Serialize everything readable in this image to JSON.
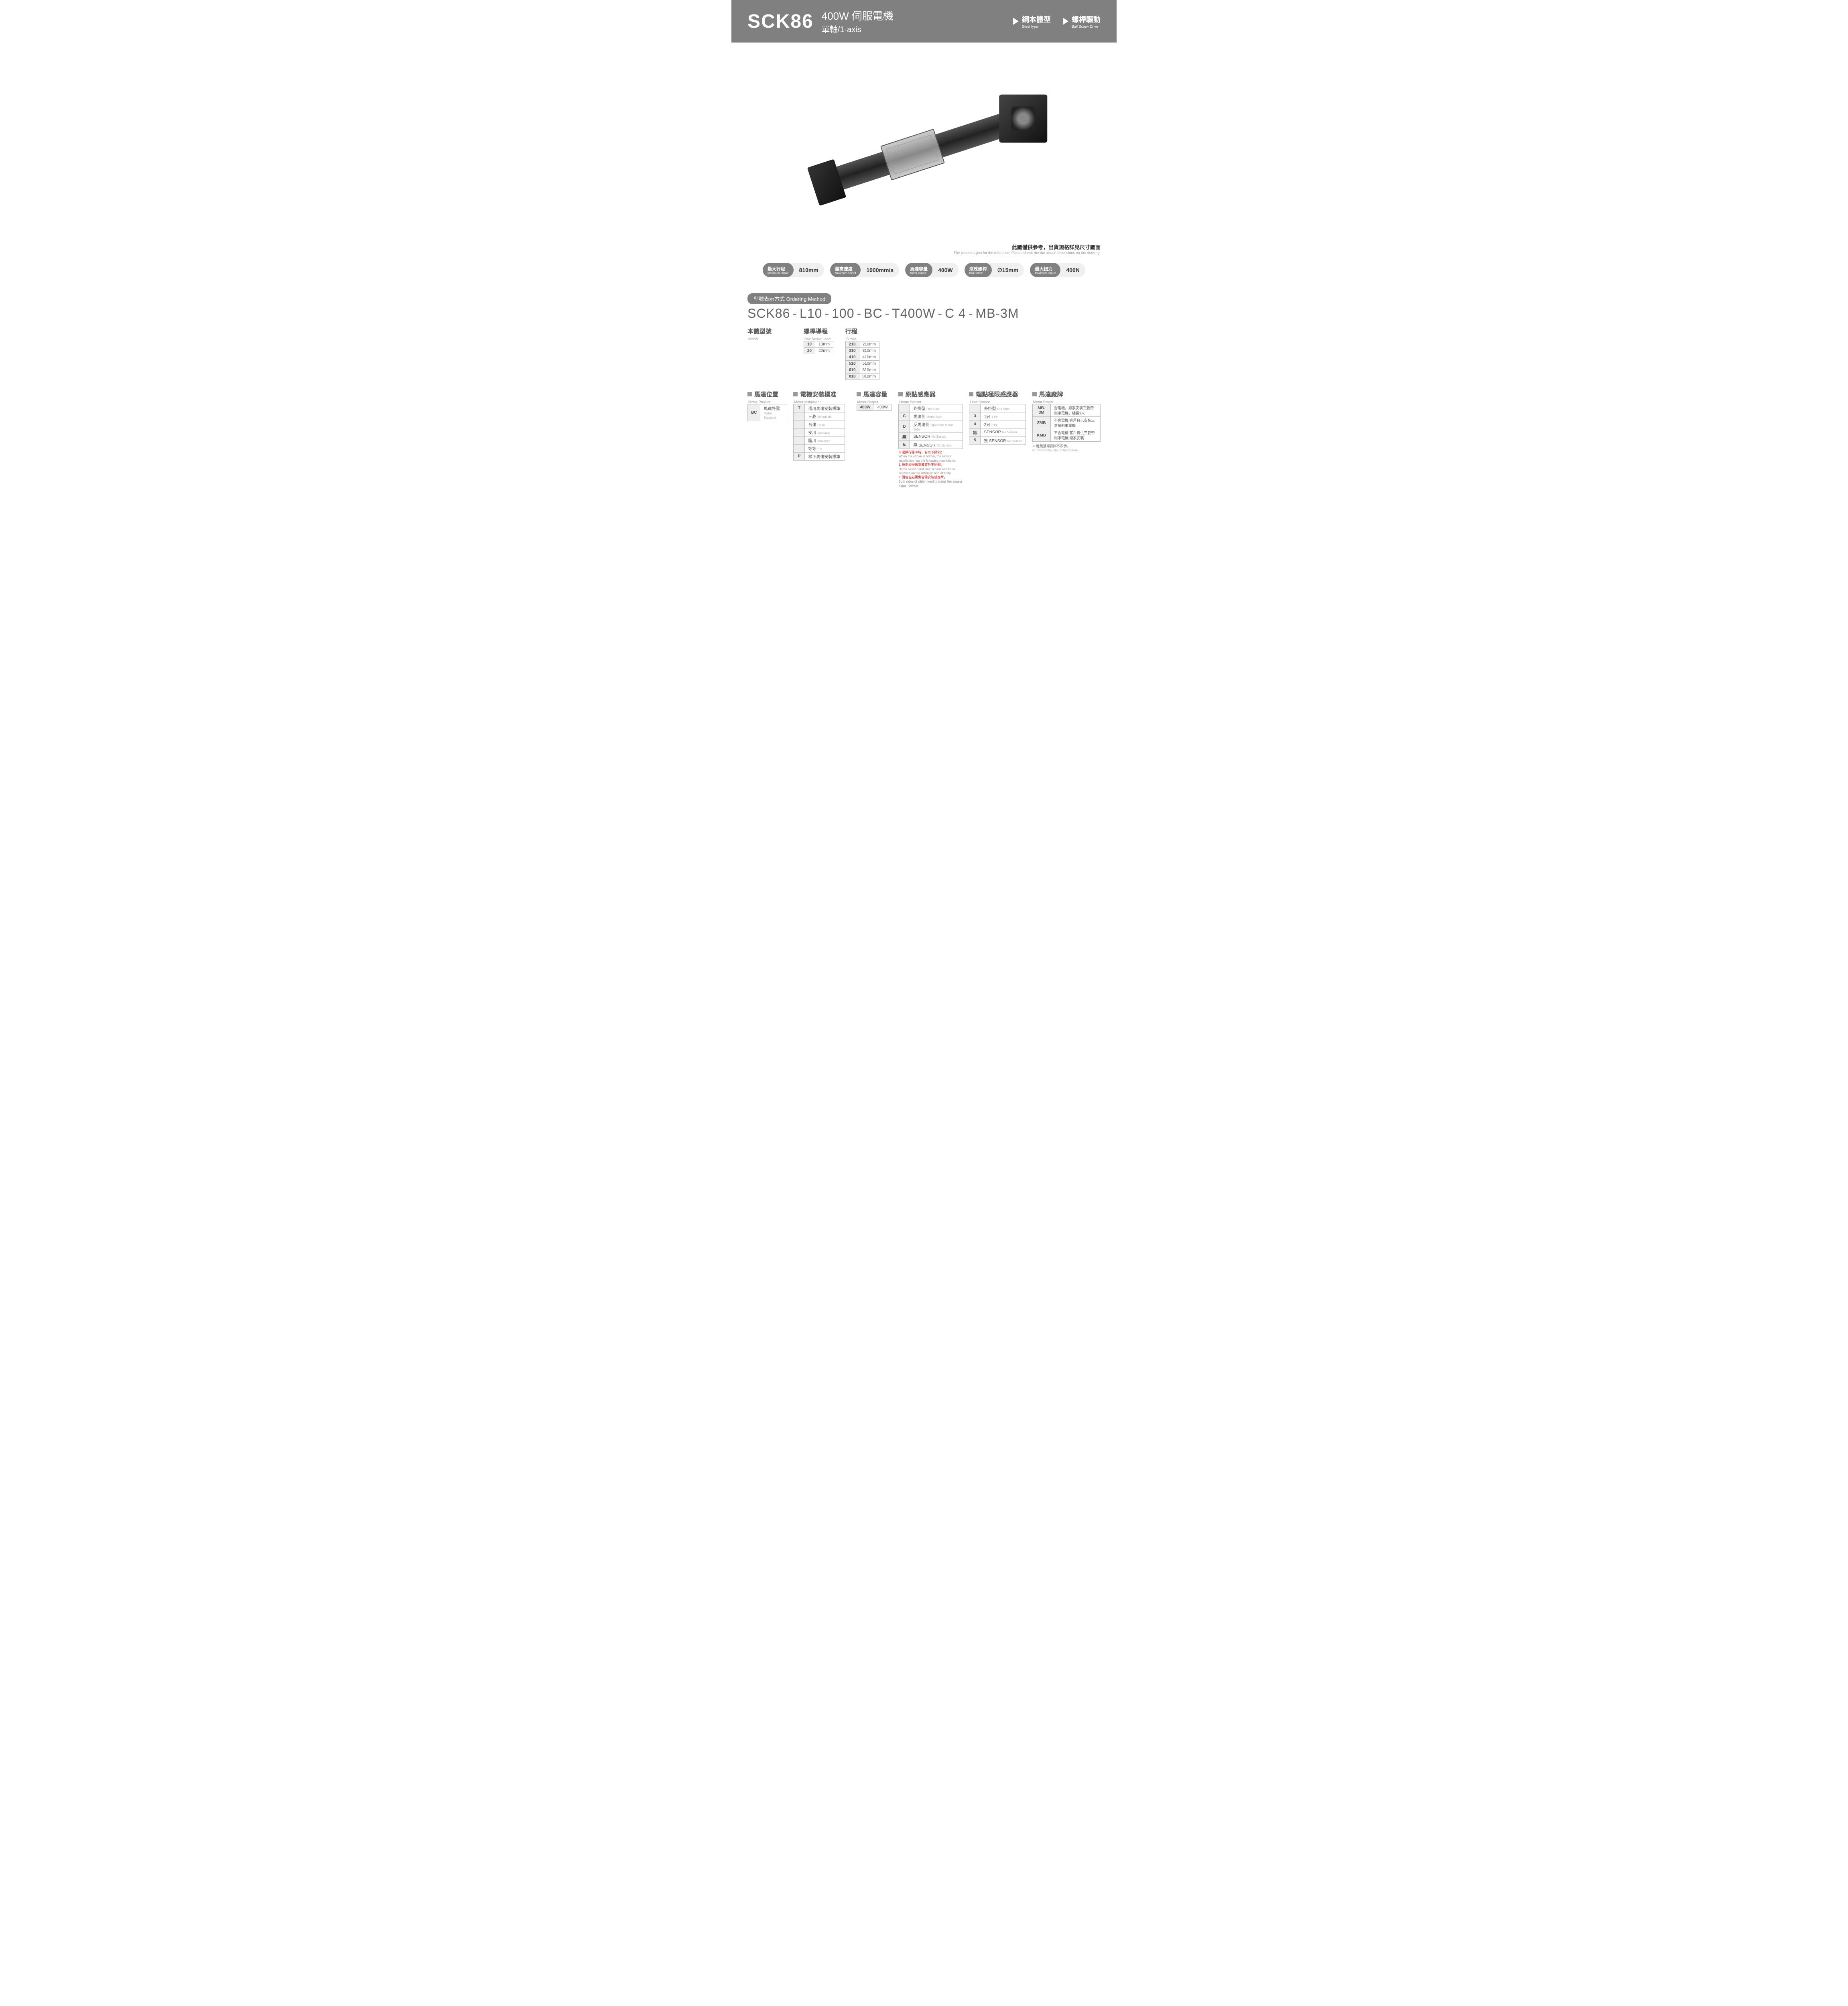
{
  "header": {
    "model": "SCK86",
    "motor_cn": "400W 伺服電機",
    "axis": "單軸/1-axis",
    "tag1_cn": "鋼本體型",
    "tag1_en": "Steel type",
    "tag2_cn": "螺桿驅動",
    "tag2_en": "Ball Screw Drive"
  },
  "img_note": {
    "cn": "此圖僅供參考，出貨規格詳見尺寸圖面",
    "en": "The picture is just for the reference. Please check the the actual dimensions on the drawing."
  },
  "specs": [
    {
      "label_cn": "最大行程",
      "label_en": "Maximum Stroke",
      "value": "810mm"
    },
    {
      "label_cn": "最高速度",
      "label_en": "Maximum Speed",
      "value": "1000mm/s"
    },
    {
      "label_cn": "馬達容量",
      "label_en": "Motor Output",
      "value": "400W"
    },
    {
      "label_cn": "滾珠螺桿",
      "label_en": "Ball Screw",
      "value": "∅15mm"
    },
    {
      "label_cn": "最大扭力",
      "label_en": "Maximum torque",
      "value": "400N"
    }
  ],
  "ordering": {
    "title": "型號表示方式  Ordering Method",
    "parts": [
      "SCK86",
      "-",
      "L10",
      "-",
      "100",
      "-",
      "BC",
      "-",
      "T400W",
      "-",
      "C 4",
      "-",
      "MB-3M"
    ]
  },
  "row1": {
    "model": {
      "cn": "本體型號",
      "en": "Model"
    },
    "lead": {
      "cn": "螺桿導程",
      "en": "Ball Screw Lead",
      "rows": [
        [
          "10",
          "10mm"
        ],
        [
          "20",
          "20mm"
        ]
      ]
    },
    "stroke": {
      "cn": "行程",
      "en": "Stroke",
      "rows": [
        [
          "210",
          "210mm"
        ],
        [
          "310",
          "310mm"
        ],
        [
          "410",
          "410mm"
        ],
        [
          "510",
          "510mm"
        ],
        [
          "610",
          "610mm"
        ],
        [
          "810",
          "810mm"
        ]
      ]
    }
  },
  "row2": {
    "motor_pos": {
      "cn": "馬達位置",
      "en": "Motor Position",
      "rows": [
        [
          "BC",
          "馬達外露",
          "Motor Exposed"
        ]
      ]
    },
    "motor_install": {
      "cn": "電機安裝標准",
      "en": "Motor installation",
      "rows": [
        [
          "T",
          "通用馬達安裝標準:",
          ""
        ],
        [
          "",
          "三菱",
          "Mitsubishi"
        ],
        [
          "",
          "台達",
          "Delta"
        ],
        [
          "",
          "安川",
          "Yaskawa"
        ],
        [
          "",
          "匯川",
          "Inovance"
        ],
        [
          "",
          "等等",
          "Etc"
        ],
        [
          "P",
          "松下馬達安裝標準",
          ""
        ]
      ]
    },
    "motor_output": {
      "cn": "馬達容量",
      "en": "Motor Output",
      "rows": [
        [
          "400W",
          "400W"
        ]
      ]
    },
    "home_sensor": {
      "cn": "原點感應器",
      "en": "Home Sensor",
      "rows": [
        [
          "",
          "外掛型",
          "Out Side"
        ],
        [
          "C",
          "馬達側",
          "Motor Side"
        ],
        [
          "D",
          "反馬達側",
          "OppoSite Motor Side"
        ],
        [
          "無",
          "SENSOR",
          "No Sensor"
        ],
        [
          "E",
          "無 SENSOR",
          "No Sensor"
        ]
      ],
      "notes": [
        {
          "red": "※選擇行程50時，有以下限制：",
          "gray": "When the stroke is 50mm, the sensor installation has the following restrictions:"
        },
        {
          "red": "1. 原點與極限需放置於不同側。",
          "gray": "Home sensor and limit sensor has to be installed on the different side of body."
        },
        {
          "red": "2. 滑座左右兩側皆需安裝感應片。",
          "gray": "Both sides of slider need to install the sensor trigger device."
        }
      ]
    },
    "limit_sensor": {
      "cn": "端點極限感應器",
      "en": "Limit Sensor",
      "rows": [
        [
          "",
          "外掛型",
          "Out Side"
        ],
        [
          "3",
          "1只",
          "1 Pc"
        ],
        [
          "4",
          "2只",
          "2 Pc"
        ],
        [
          "無",
          "SENSOR",
          "No Sensor"
        ],
        [
          "5",
          "無 SENSOR",
          "No Sensor"
        ]
      ]
    },
    "motor_brand": {
      "cn": "馬達廠牌",
      "en": "Motor Brand",
      "rows": [
        [
          "MB-3M",
          "含電機，廠家安裝三菱帶剎車電機，綫長3米"
        ],
        [
          "ZMB",
          "不含電機,客戶自己安裝三菱帶剎車電機"
        ],
        [
          "KMB",
          "不含電機,客戶提供三菱帶剎車電機,廠家安裝"
        ]
      ],
      "note_cn": "※若無煞車則B不表示。",
      "note_en": "※ If No Brake, No B Description."
    }
  },
  "colors": {
    "header_bg": "#808080",
    "pill_bg": "#f0f0f0",
    "text_gray": "#666666",
    "border": "#bbbbbb",
    "red": "#dd0000"
  }
}
